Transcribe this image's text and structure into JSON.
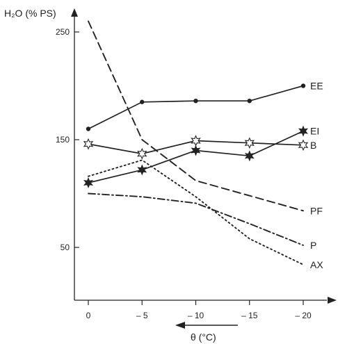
{
  "chart_data": {
    "type": "line",
    "ylabel": "H₂O (% PS)",
    "xlabel": "θ (°C)",
    "x_ticks": [
      0,
      -5,
      -10,
      -15,
      -20
    ],
    "x_tick_labels": [
      "0",
      "– 5",
      "– 10",
      "– 15",
      "– 20"
    ],
    "y_ticks": [
      50,
      150,
      250
    ],
    "y_tick_labels": [
      "50",
      "150",
      "250"
    ],
    "xlim": [
      1,
      -22
    ],
    "ylim": [
      0,
      275
    ],
    "grid": false,
    "series": [
      {
        "name": "EE",
        "x": [
          0,
          -5,
          -10,
          -15,
          -20
        ],
        "y": [
          160,
          185,
          186,
          186,
          200
        ],
        "style": "solid",
        "marker": "dot",
        "color": "#222222"
      },
      {
        "name": "EI",
        "x": [
          0,
          -5,
          -10,
          -15,
          -20
        ],
        "y": [
          110,
          122,
          140,
          135,
          158
        ],
        "style": "solid",
        "marker": "star",
        "color": "#222222"
      },
      {
        "name": "B",
        "x": [
          0,
          -5,
          -10,
          -15,
          -20
        ],
        "y": [
          146,
          137,
          149,
          147,
          145
        ],
        "style": "solid",
        "marker": "open-star",
        "color": "#222222"
      },
      {
        "name": "PF",
        "x": [
          0,
          -5,
          -10,
          -15,
          -20
        ],
        "y": [
          260,
          150,
          112,
          98,
          84
        ],
        "style": "dashed",
        "marker": "none",
        "color": "#222222"
      },
      {
        "name": "P",
        "x": [
          0,
          -5,
          -10,
          -15,
          -20
        ],
        "y": [
          100,
          97,
          91,
          72,
          52
        ],
        "style": "dashdot",
        "marker": "none",
        "color": "#222222"
      },
      {
        "name": "AX",
        "x": [
          0,
          -5,
          -10,
          -15,
          -20
        ],
        "y": [
          116,
          131,
          97,
          58,
          34
        ],
        "style": "dotted",
        "marker": "none",
        "color": "#222222"
      }
    ]
  }
}
